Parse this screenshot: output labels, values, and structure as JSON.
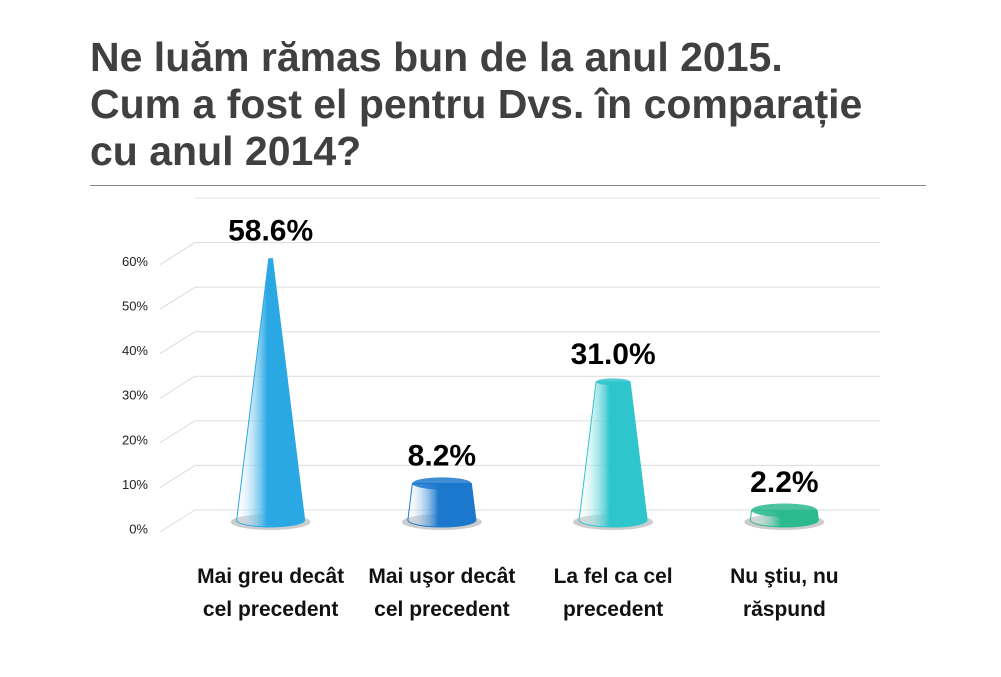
{
  "chart_data": {
    "type": "cone",
    "title": "Ne luăm rămas bun de la anul 2015. Cum a fost el pentru Dvs. în comparație cu anul 2014?",
    "categories": [
      "Mai greu decât cel precedent",
      "Mai uşor decât cel precedent",
      "La fel ca cel precedent",
      "Nu ştiu, nu răspund"
    ],
    "values": [
      58.6,
      8.2,
      31.0,
      2.2
    ],
    "value_labels": [
      "58.6%",
      "8.2%",
      "31.0%",
      "2.2%"
    ],
    "colors": [
      "#2aa8e4",
      "#1c78cc",
      "#2ec6cc",
      "#2bb98e"
    ],
    "ylim": [
      0,
      70
    ],
    "yticks": [
      {
        "value": 0,
        "label": "0%"
      },
      {
        "value": 10,
        "label": "10%"
      },
      {
        "value": 20,
        "label": "20%"
      },
      {
        "value": 30,
        "label": "30%"
      },
      {
        "value": 40,
        "label": "40%"
      },
      {
        "value": 50,
        "label": "50%"
      },
      {
        "value": 60,
        "label": "60%"
      }
    ],
    "grid": true
  }
}
